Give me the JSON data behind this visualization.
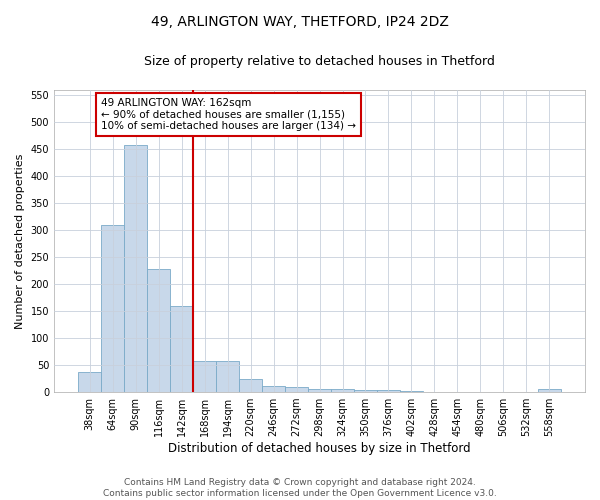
{
  "title": "49, ARLINGTON WAY, THETFORD, IP24 2DZ",
  "subtitle": "Size of property relative to detached houses in Thetford",
  "xlabel": "Distribution of detached houses by size in Thetford",
  "ylabel": "Number of detached properties",
  "footer_line1": "Contains HM Land Registry data © Crown copyright and database right 2024.",
  "footer_line2": "Contains public sector information licensed under the Open Government Licence v3.0.",
  "bin_labels": [
    "38sqm",
    "64sqm",
    "90sqm",
    "116sqm",
    "142sqm",
    "168sqm",
    "194sqm",
    "220sqm",
    "246sqm",
    "272sqm",
    "298sqm",
    "324sqm",
    "350sqm",
    "376sqm",
    "402sqm",
    "428sqm",
    "454sqm",
    "480sqm",
    "506sqm",
    "532sqm",
    "558sqm"
  ],
  "bar_values": [
    38,
    310,
    458,
    228,
    160,
    57,
    57,
    25,
    12,
    10,
    5,
    5,
    3,
    3,
    2,
    1,
    1,
    1,
    1,
    1,
    5
  ],
  "bar_color": "#c8d8ea",
  "bar_edge_color": "#7aaac8",
  "property_line_x": 5,
  "property_line_color": "#cc0000",
  "annotation_text": "49 ARLINGTON WAY: 162sqm\n← 90% of detached houses are smaller (1,155)\n10% of semi-detached houses are larger (134) →",
  "annotation_box_color": "white",
  "annotation_box_edge_color": "#cc0000",
  "ylim": [
    0,
    560
  ],
  "yticks": [
    0,
    50,
    100,
    150,
    200,
    250,
    300,
    350,
    400,
    450,
    500,
    550
  ],
  "title_fontsize": 10,
  "subtitle_fontsize": 9,
  "xlabel_fontsize": 8.5,
  "ylabel_fontsize": 8,
  "tick_fontsize": 7,
  "footer_fontsize": 6.5,
  "annotation_fontsize": 7.5,
  "background_color": "#ffffff",
  "grid_color": "#c8d0dc",
  "fig_width": 6.0,
  "fig_height": 5.0
}
